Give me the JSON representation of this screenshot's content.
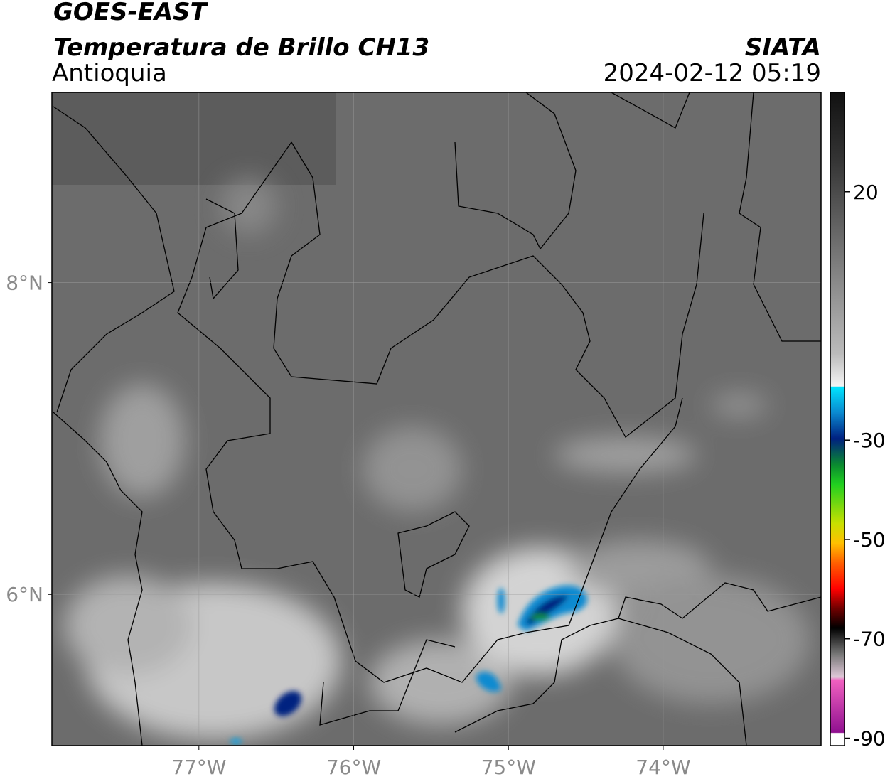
{
  "header": {
    "title": "GOES-EAST",
    "subtitle": "Temperatura de Brillo CH13",
    "region": "Antioquia",
    "agency": "SIATA",
    "datetime": "2024-02-12 05:19"
  },
  "map": {
    "lon_lim": [
      -77.95,
      -72.98
    ],
    "lat_lim": [
      5.03,
      9.22
    ],
    "lon_ticks": [
      {
        "value": -77,
        "label": "77°W"
      },
      {
        "value": -76,
        "label": "76°W"
      },
      {
        "value": -75,
        "label": "75°W"
      },
      {
        "value": -74,
        "label": "74°W"
      }
    ],
    "lat_ticks": [
      {
        "value": 8,
        "label": "8°N"
      },
      {
        "value": 6,
        "label": "6°N"
      }
    ]
  },
  "colorbar": {
    "lim": [
      -91.5,
      40
    ],
    "ticks": [
      20,
      -30,
      -50,
      -70,
      -90
    ]
  }
}
